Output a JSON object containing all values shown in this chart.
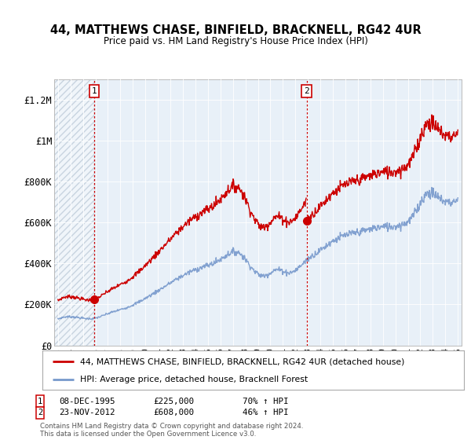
{
  "title": "44, MATTHEWS CHASE, BINFIELD, BRACKNELL, RG42 4UR",
  "subtitle": "Price paid vs. HM Land Registry's House Price Index (HPI)",
  "ylim": [
    0,
    1300000
  ],
  "yticks": [
    0,
    200000,
    400000,
    600000,
    800000,
    1000000,
    1200000
  ],
  "ytick_labels": [
    "£0",
    "£200K",
    "£400K",
    "£600K",
    "£800K",
    "£1M",
    "£1.2M"
  ],
  "xlim_start": 1992.7,
  "xlim_end": 2025.3,
  "sale1_x": 1995.92,
  "sale1_y": 225000,
  "sale1_label": "1",
  "sale1_date": "08-DEC-1995",
  "sale1_price": "£225,000",
  "sale1_hpi": "70% ↑ HPI",
  "sale2_x": 2012.9,
  "sale2_y": 608000,
  "sale2_label": "2",
  "sale2_date": "23-NOV-2012",
  "sale2_price": "£608,000",
  "sale2_hpi": "46% ↑ HPI",
  "red_line_color": "#cc0000",
  "blue_line_color": "#7799cc",
  "legend1": "44, MATTHEWS CHASE, BINFIELD, BRACKNELL, RG42 4UR (detached house)",
  "legend2": "HPI: Average price, detached house, Bracknell Forest",
  "footer": "Contains HM Land Registry data © Crown copyright and database right 2024.\nThis data is licensed under the Open Government Licence v3.0.",
  "background_color": "#ffffff",
  "plot_bg_color": "#e8f0f8",
  "hatch_color": "#c8d4e0",
  "grid_color": "#ffffff"
}
